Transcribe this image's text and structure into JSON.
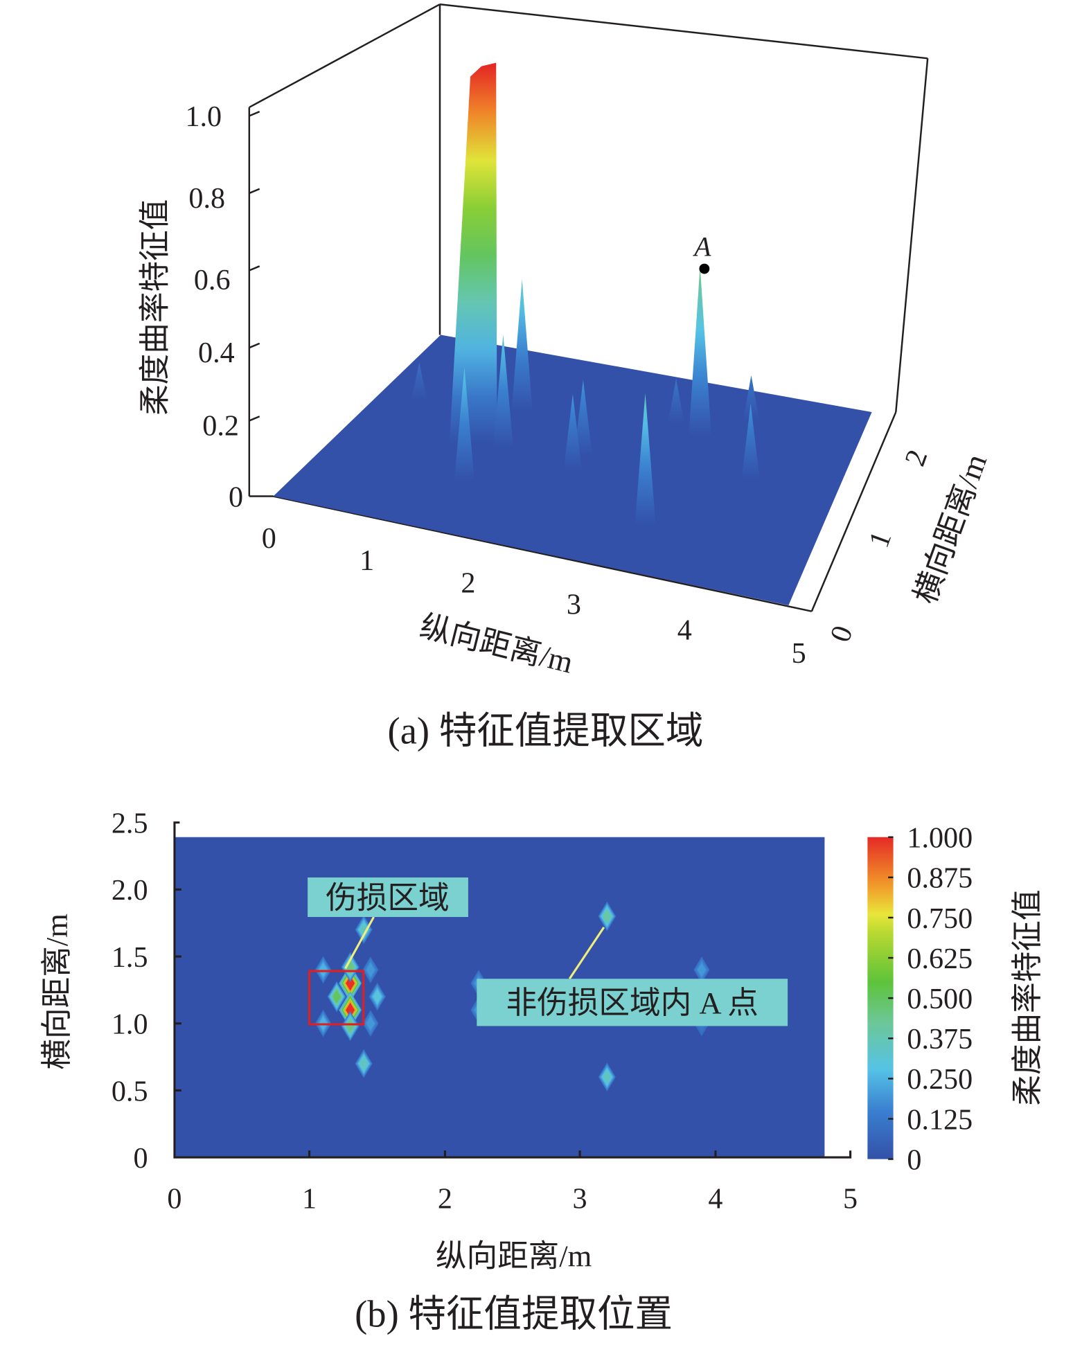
{
  "chart_data": [
    {
      "type": "surface3d",
      "caption": "(a) 特征值提取区域",
      "xlabel": "纵向距离/m",
      "ylabel": "横向距离/m",
      "zlabel": "柔度曲率特征值",
      "xticks": [
        "0",
        "1",
        "2",
        "3",
        "4",
        "5"
      ],
      "yticks": [
        "0",
        "1",
        "2"
      ],
      "zticks": [
        "0",
        "0.2",
        "0.4",
        "0.6",
        "0.8",
        "1.0"
      ],
      "xlim": [
        0,
        5
      ],
      "ylim": [
        0,
        2.5
      ],
      "zlim": [
        0,
        1.0
      ],
      "annotation": {
        "label": "A",
        "x": 3.2,
        "y": 1.8,
        "z": 0.45
      },
      "peaks": [
        {
          "x": 1.3,
          "y": 1.2,
          "z": 1.0
        },
        {
          "x": 1.4,
          "y": 1.7,
          "z": 0.35
        },
        {
          "x": 1.4,
          "y": 0.7,
          "z": 0.3
        },
        {
          "x": 1.1,
          "y": 1.4,
          "z": 0.25
        },
        {
          "x": 1.5,
          "y": 1.2,
          "z": 0.3
        },
        {
          "x": 2.25,
          "y": 1.3,
          "z": 0.2
        },
        {
          "x": 2.25,
          "y": 1.1,
          "z": 0.2
        },
        {
          "x": 3.2,
          "y": 1.8,
          "z": 0.45
        },
        {
          "x": 3.2,
          "y": 0.6,
          "z": 0.35
        },
        {
          "x": 3.9,
          "y": 1.4,
          "z": 0.2
        },
        {
          "x": 2.9,
          "y": 1.9,
          "z": 0.12
        },
        {
          "x": 3.6,
          "y": 2.1,
          "z": 0.12
        },
        {
          "x": 0.4,
          "y": 1.6,
          "z": 0.1
        }
      ]
    },
    {
      "type": "heatmap",
      "caption": "(b) 特征值提取位置",
      "xlabel": "纵向距离/m",
      "ylabel": "横向距离/m",
      "xticks": [
        "0",
        "1",
        "2",
        "3",
        "4",
        "5"
      ],
      "yticks": [
        "0",
        "0.5",
        "1.0",
        "1.5",
        "2.0",
        "2.5"
      ],
      "xlim": [
        0,
        5
      ],
      "ylim": [
        0,
        2.5
      ],
      "data_extent": {
        "x": [
          0,
          4.8
        ],
        "y": [
          0,
          2.4
        ]
      },
      "colorbar": {
        "label": "柔度曲率特征值",
        "ticks": [
          "0",
          "0.125",
          "0.250",
          "0.375",
          "0.500",
          "0.625",
          "0.750",
          "0.875",
          "1.000"
        ],
        "range": [
          0,
          1
        ]
      },
      "damage_box": {
        "x": [
          1.0,
          1.4
        ],
        "y": [
          1.0,
          1.4
        ]
      },
      "annotations": [
        {
          "text": "伤损区域"
        },
        {
          "text": "非伤损区域内 A 点"
        }
      ],
      "hotspots": [
        {
          "x": 1.3,
          "y": 1.3,
          "v": 1.0
        },
        {
          "x": 1.3,
          "y": 1.1,
          "v": 1.0
        },
        {
          "x": 1.2,
          "y": 1.2,
          "v": 0.5
        },
        {
          "x": 1.3,
          "y": 1.42,
          "v": 0.45
        },
        {
          "x": 1.3,
          "y": 0.98,
          "v": 0.45
        },
        {
          "x": 1.1,
          "y": 1.4,
          "v": 0.25
        },
        {
          "x": 1.1,
          "y": 1.0,
          "v": 0.25
        },
        {
          "x": 1.5,
          "y": 1.2,
          "v": 0.3
        },
        {
          "x": 1.45,
          "y": 1.4,
          "v": 0.2
        },
        {
          "x": 1.45,
          "y": 1.0,
          "v": 0.2
        },
        {
          "x": 1.4,
          "y": 1.7,
          "v": 0.35
        },
        {
          "x": 1.4,
          "y": 0.7,
          "v": 0.35
        },
        {
          "x": 3.2,
          "y": 1.8,
          "v": 0.4
        },
        {
          "x": 3.2,
          "y": 0.6,
          "v": 0.35
        },
        {
          "x": 2.25,
          "y": 1.3,
          "v": 0.2
        },
        {
          "x": 2.25,
          "y": 1.1,
          "v": 0.2
        },
        {
          "x": 3.9,
          "y": 1.4,
          "v": 0.2
        },
        {
          "x": 3.9,
          "y": 1.0,
          "v": 0.12
        }
      ]
    }
  ],
  "colors": {
    "background_field": "#3351a8",
    "damage_box": "#e02020",
    "label_box": "#7ad1cf",
    "leader": "#f0ee7a"
  }
}
